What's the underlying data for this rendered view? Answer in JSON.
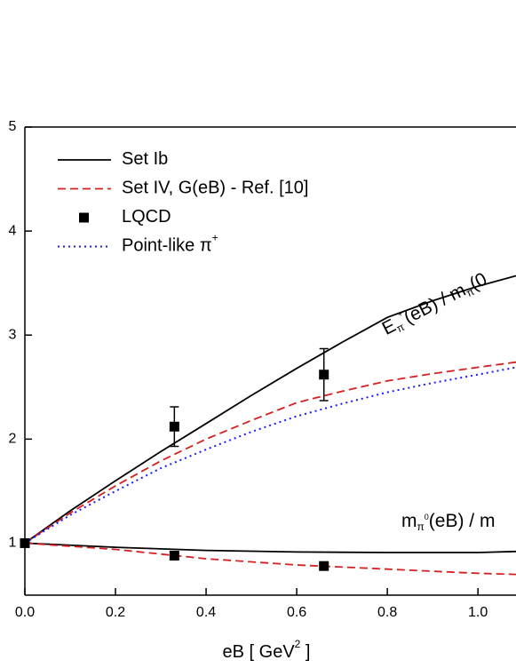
{
  "chart_data": {
    "type": "line",
    "x_label": [
      "eB  [ GeV",
      "2",
      " ]"
    ],
    "xlim": [
      0,
      1.084
    ],
    "ylim": [
      0.5,
      5
    ],
    "xticks": [
      {
        "value": 0,
        "label": "0.0"
      },
      {
        "value": 0.2,
        "label": "0.2"
      },
      {
        "value": 0.4,
        "label": "0.4"
      },
      {
        "value": 0.6,
        "label": "0.6"
      },
      {
        "value": 0.8,
        "label": "0.8"
      },
      {
        "value": 1,
        "label": "1.0"
      }
    ],
    "yticks": [
      1,
      2,
      3,
      4,
      5
    ],
    "legend": [
      {
        "label": [
          "Set Ib"
        ],
        "color": "#000000",
        "style": "solid"
      },
      {
        "label": [
          "Set IV, G(eB) - Ref. [10]"
        ],
        "color": "#d62020",
        "style": "dashed"
      },
      {
        "label": [
          "LQCD"
        ],
        "color": "#000000",
        "style": "marker"
      },
      {
        "label": [
          "Point-like π",
          "+"
        ],
        "color": "#1a1aff",
        "style": "dotted"
      }
    ],
    "series": [
      {
        "color": "#000000",
        "style": "solid",
        "x": [
          0,
          0.1,
          0.2,
          0.3,
          0.4,
          0.5,
          0.6,
          0.7,
          0.8,
          0.9,
          1.0,
          1.084
        ],
        "values": [
          1,
          1.31,
          1.6,
          1.88,
          2.15,
          2.42,
          2.68,
          2.93,
          3.17,
          3.33,
          3.47,
          3.57
        ]
      },
      {
        "color": "#d62020",
        "style": "dashed",
        "x": [
          0,
          0.1,
          0.2,
          0.3,
          0.4,
          0.5,
          0.6,
          0.7,
          0.8,
          0.9,
          1.0,
          1.084
        ],
        "values": [
          1,
          1.29,
          1.55,
          1.79,
          2.0,
          2.18,
          2.35,
          2.46,
          2.56,
          2.63,
          2.69,
          2.74
        ]
      },
      {
        "color": "#1a1aff",
        "style": "dotted",
        "x": [
          0,
          0.1,
          0.2,
          0.3,
          0.4,
          0.5,
          0.6,
          0.7,
          0.8,
          0.9,
          1.0,
          1.084
        ],
        "values": [
          1,
          1.27,
          1.5,
          1.72,
          1.9,
          2.07,
          2.22,
          2.34,
          2.45,
          2.54,
          2.62,
          2.69
        ]
      },
      {
        "color": "#000000",
        "style": "solid",
        "x": [
          0,
          0.2,
          0.4,
          0.6,
          0.8,
          1.0,
          1.084
        ],
        "values": [
          1,
          0.96,
          0.93,
          0.915,
          0.91,
          0.91,
          0.92
        ]
      },
      {
        "color": "#d62020",
        "style": "dashed",
        "x": [
          0,
          0.2,
          0.4,
          0.6,
          0.8,
          1.0,
          1.084
        ],
        "values": [
          1,
          0.94,
          0.85,
          0.79,
          0.75,
          0.71,
          0.7
        ]
      }
    ],
    "points": [
      {
        "color": "#000000",
        "x": [
          0,
          0.33,
          0.66
        ],
        "values": [
          1,
          2.12,
          2.62
        ],
        "errors": [
          0,
          0.19,
          0.25
        ]
      },
      {
        "color": "#000000",
        "x": [
          0.33,
          0.66
        ],
        "values": [
          0.88,
          0.78
        ],
        "errors": [
          0.02,
          0.02
        ]
      }
    ],
    "annotations": [
      {
        "text": [
          "E",
          "π",
          "+",
          "(eB) / m",
          "π",
          "(0"
        ]
      },
      {
        "text": [
          "m",
          "π",
          "0",
          "(eB) / m"
        ]
      }
    ]
  }
}
